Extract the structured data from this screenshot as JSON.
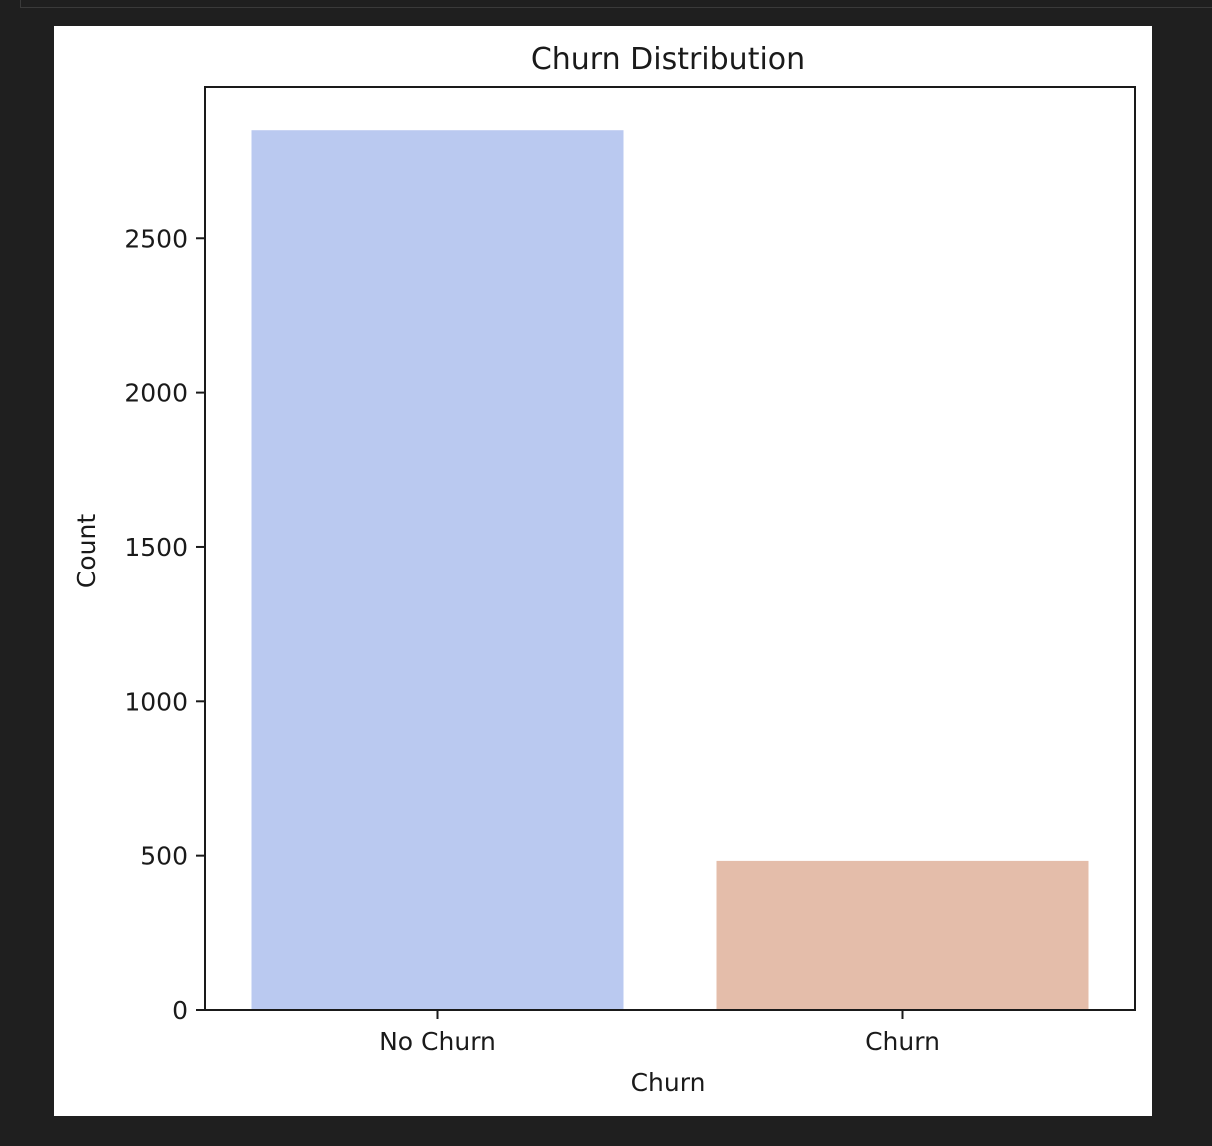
{
  "chart_data": {
    "type": "bar",
    "title": "Churn Distribution",
    "xlabel": "Churn",
    "ylabel": "Count",
    "categories": [
      "No Churn",
      "Churn"
    ],
    "values": [
      2850,
      483
    ],
    "colors": [
      "#bac9f0",
      "#e4bdaa"
    ],
    "ylim": [
      0,
      2990
    ],
    "yticks": [
      0,
      500,
      1000,
      1500,
      2000,
      2500
    ],
    "grid": false
  }
}
